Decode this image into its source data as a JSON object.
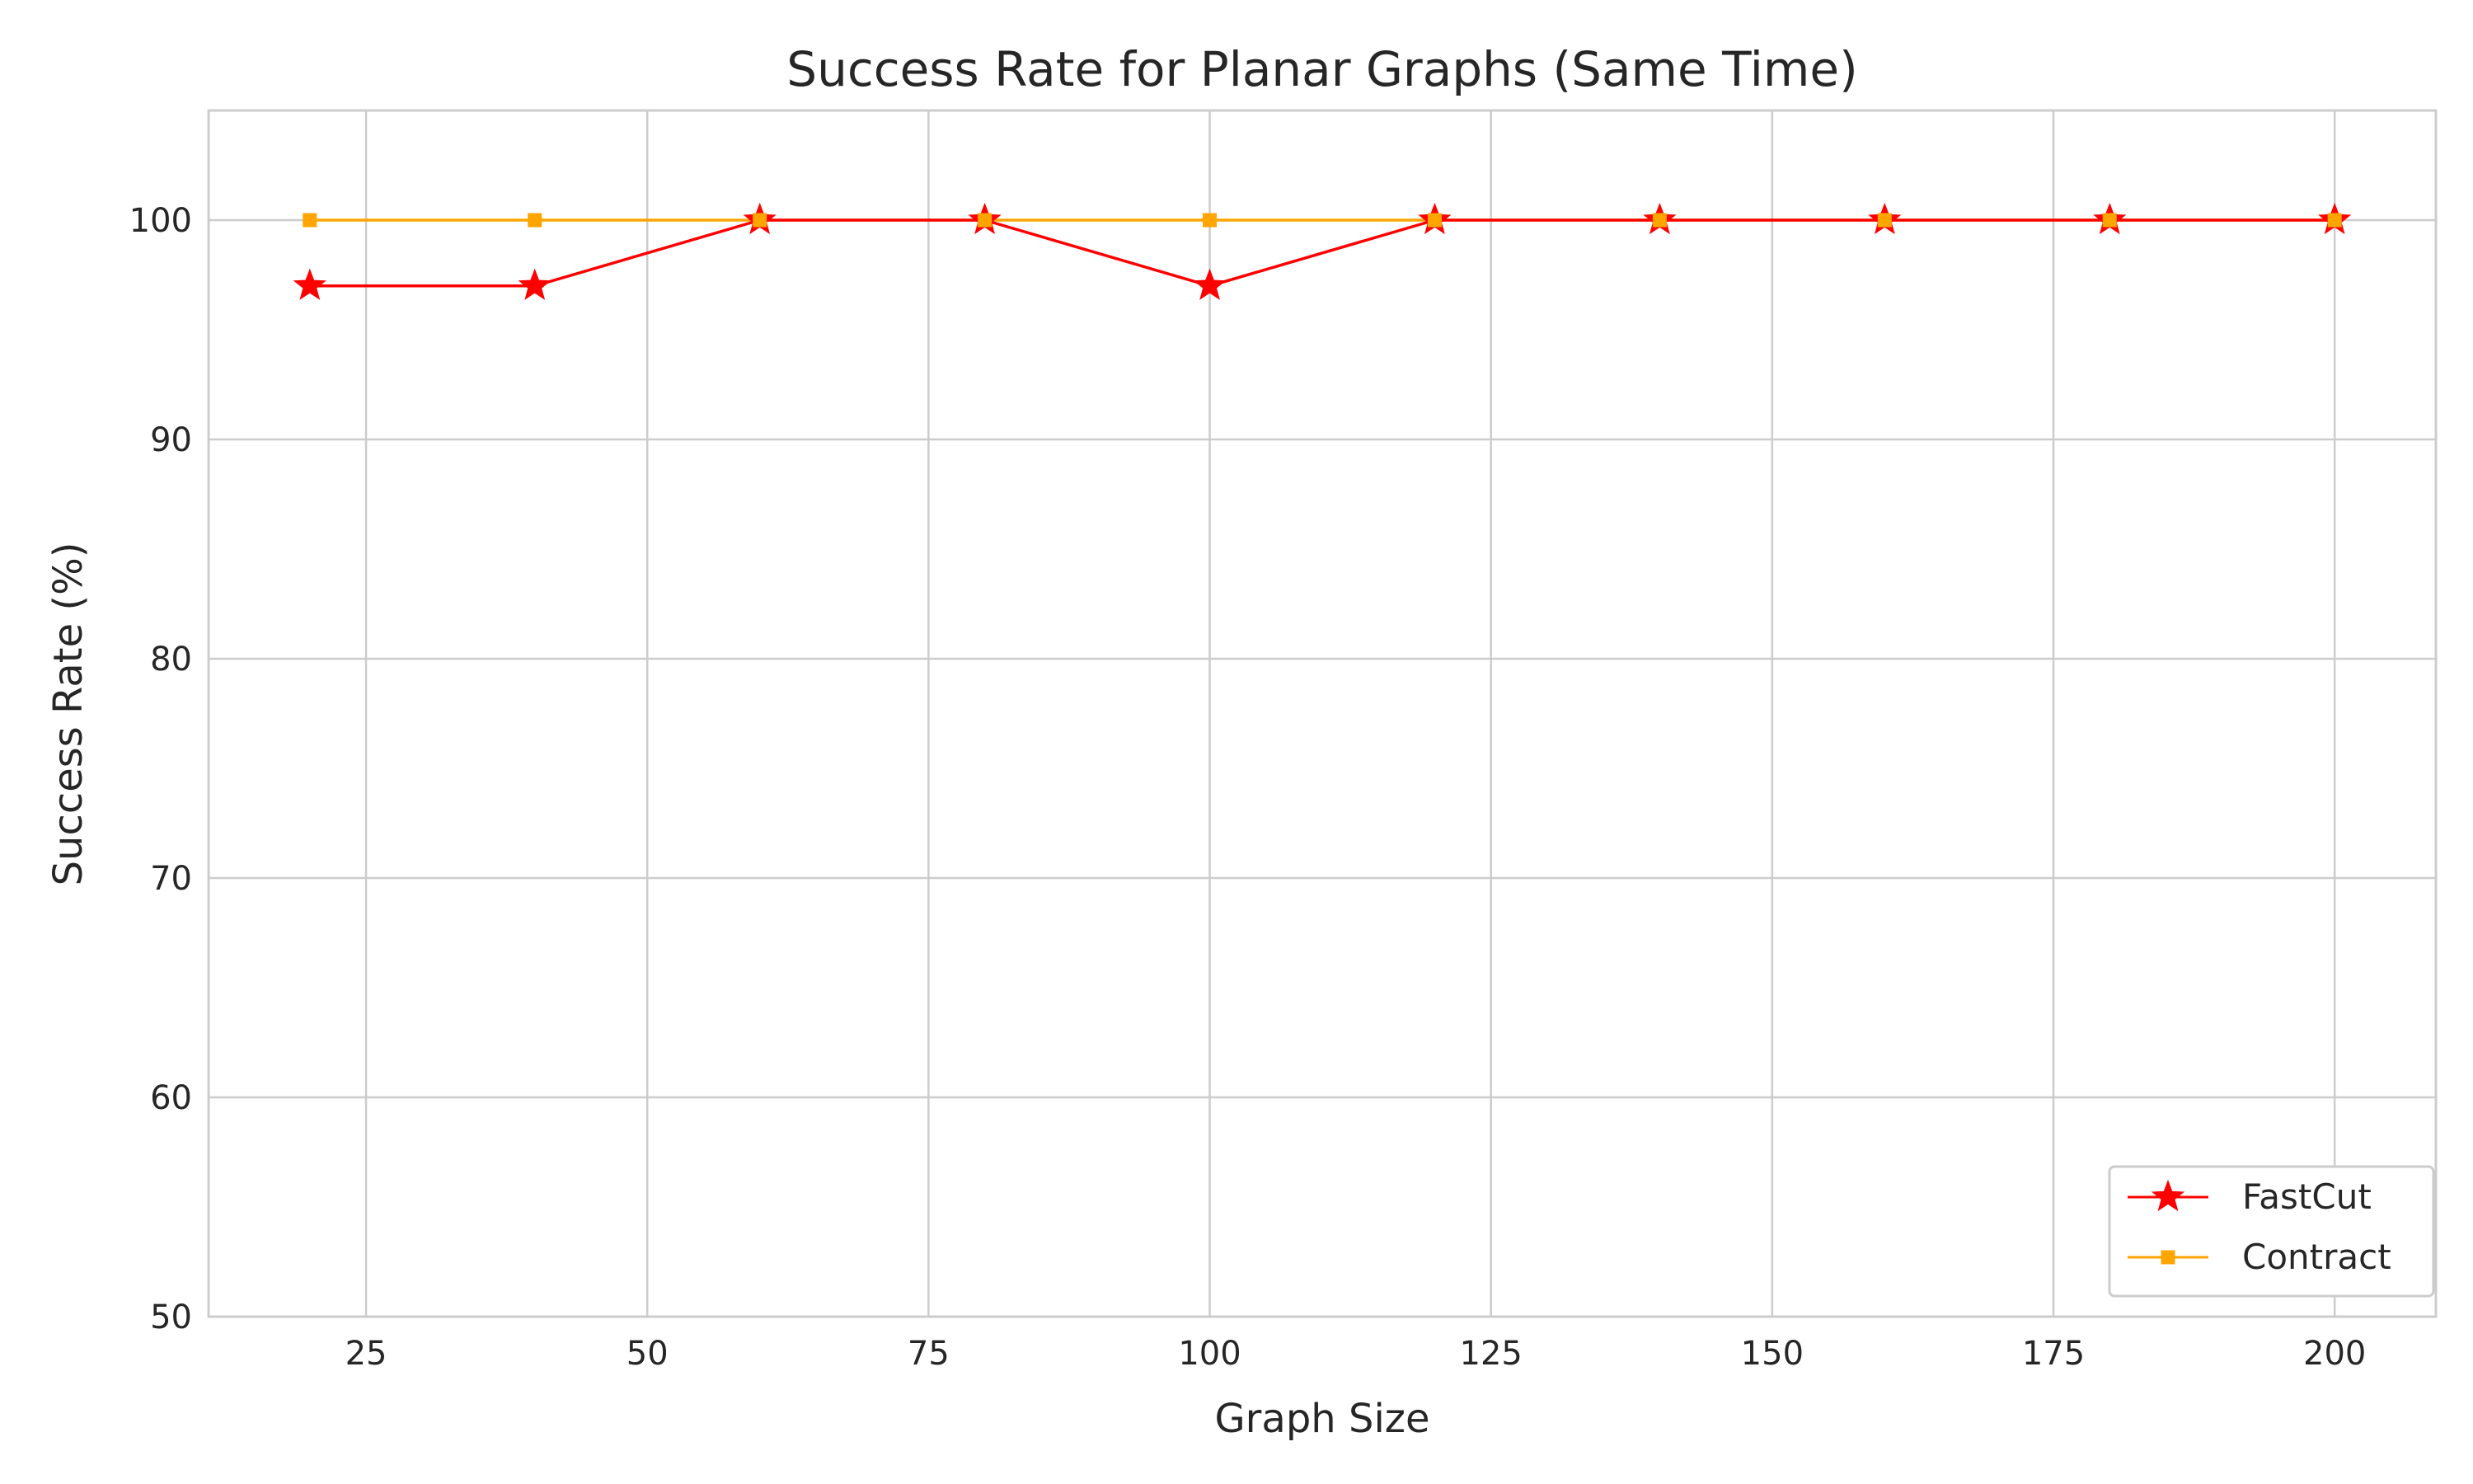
{
  "chart_data": {
    "type": "line",
    "title": "Success Rate for Planar Graphs (Same Time)",
    "xlabel": "Graph Size",
    "ylabel": "Success Rate (%)",
    "xlim": [
      11,
      209
    ],
    "ylim": [
      50,
      105
    ],
    "xticks": [
      25,
      50,
      75,
      100,
      125,
      150,
      175,
      200
    ],
    "yticks": [
      50,
      60,
      70,
      80,
      90,
      100
    ],
    "grid": true,
    "legend_position": "lower-right",
    "x": [
      20,
      40,
      60,
      80,
      100,
      120,
      140,
      160,
      180,
      200
    ],
    "series": [
      {
        "name": "FastCut",
        "color": "#ff0000",
        "marker": "star",
        "values": [
          97,
          97,
          100,
          100,
          97,
          100,
          100,
          100,
          100,
          100
        ]
      },
      {
        "name": "Contract",
        "color": "#ffa500",
        "marker": "square",
        "values": [
          100,
          100,
          100,
          100,
          100,
          100,
          100,
          100,
          100,
          100
        ]
      }
    ]
  }
}
